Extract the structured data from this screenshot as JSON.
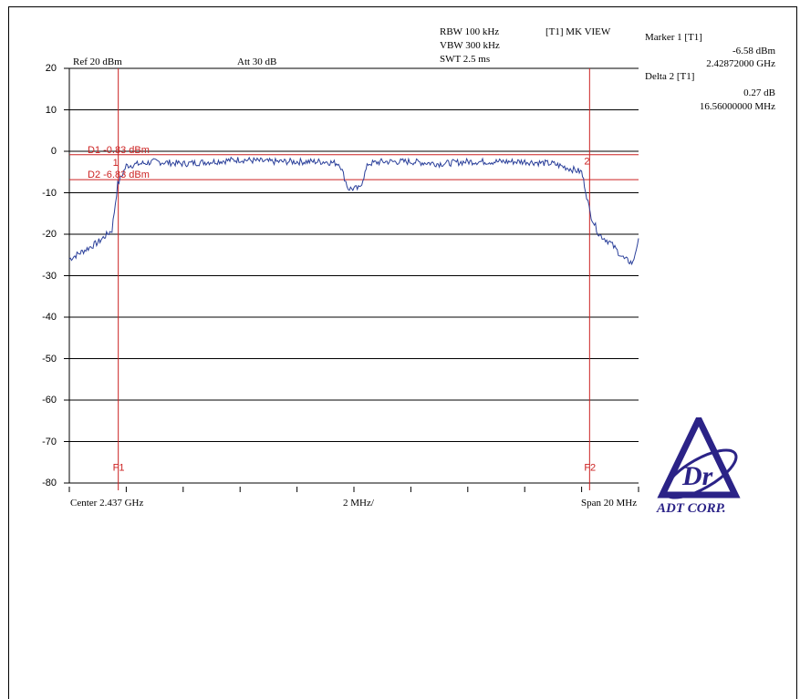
{
  "header": {
    "ref_level": "Ref 20 dBm",
    "attenuation": "Att 30 dB",
    "rbw": "RBW 100 kHz",
    "vbw": "VBW 300 kHz",
    "swt": "SWT 2.5 ms",
    "view_mode": "[T1] MK VIEW"
  },
  "marker_panel": {
    "marker1_title": "Marker 1 [T1]",
    "marker1_level": "-6.58 dBm",
    "marker1_freq": "2.42872000 GHz",
    "delta2_title": "Delta 2 [T1]",
    "delta2_level": "0.27 dB",
    "delta2_freq": "16.56000000 MHz"
  },
  "footer": {
    "center": "Center 2.437 GHz",
    "per_div": "2 MHz/",
    "span": "Span 20 MHz"
  },
  "logo": {
    "text": "ADT CORP.",
    "color": "#2b2387"
  },
  "colors": {
    "trace": "#2a3f9a",
    "marker": "#cc2222",
    "grid": "#000000"
  },
  "chart_data": {
    "type": "line",
    "x_unit": "GHz",
    "y_unit": "dBm",
    "xlim": [
      2.427,
      2.447
    ],
    "ylim": [
      -80,
      20
    ],
    "yticks": [
      20,
      10,
      0,
      -10,
      -20,
      -30,
      -40,
      -50,
      -60,
      -70,
      -80
    ],
    "x": [
      2.427,
      2.4275,
      2.428,
      2.4285,
      2.4287,
      2.429,
      2.4295,
      2.43,
      2.431,
      2.432,
      2.433,
      2.434,
      2.435,
      2.436,
      2.4365,
      2.4368,
      2.4372,
      2.4375,
      2.438,
      2.439,
      2.44,
      2.441,
      2.442,
      2.443,
      2.444,
      2.445,
      2.4451,
      2.4453,
      2.4456,
      2.446,
      2.4465,
      2.4468,
      2.447
    ],
    "y": [
      -26,
      -24,
      -22,
      -19,
      -8,
      -3.5,
      -3,
      -2.5,
      -3,
      -2.5,
      -2,
      -2.5,
      -2.5,
      -2.5,
      -3,
      -9,
      -9,
      -3,
      -2.5,
      -2.5,
      -3,
      -2.5,
      -2.5,
      -2.5,
      -3,
      -5,
      -8,
      -15,
      -20,
      -22,
      -26,
      -27,
      -21
    ],
    "markers": [
      {
        "label": "1",
        "x": 2.42872,
        "y": -6.58
      },
      {
        "label": "2",
        "x": 2.44528,
        "y": -6.31
      }
    ],
    "display_lines": [
      {
        "label": "D1 -0.83 dBm",
        "y": -0.83
      },
      {
        "label": "D2 -6.83 dBm",
        "y": -6.83
      }
    ],
    "frequency_lines": [
      {
        "label": "F1",
        "x": 2.42872
      },
      {
        "label": "F2",
        "x": 2.44528
      }
    ]
  }
}
